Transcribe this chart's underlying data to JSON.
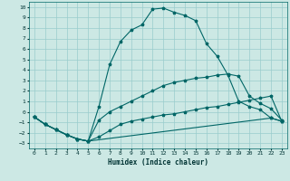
{
  "xlabel": "Humidex (Indice chaleur)",
  "bg_color": "#cce8e4",
  "grid_color": "#99cccc",
  "line_color": "#006666",
  "xlim": [
    -0.5,
    23.5
  ],
  "ylim": [
    -3.5,
    10.5
  ],
  "xticks": [
    0,
    1,
    2,
    3,
    4,
    5,
    6,
    7,
    8,
    9,
    10,
    11,
    12,
    13,
    14,
    15,
    16,
    17,
    18,
    19,
    20,
    21,
    22,
    23
  ],
  "yticks": [
    -3,
    -2,
    -1,
    0,
    1,
    2,
    3,
    4,
    5,
    6,
    7,
    8,
    9,
    10
  ],
  "curve_main_x": [
    0,
    1,
    2,
    3,
    4,
    5,
    6,
    7,
    8,
    9,
    10,
    11,
    12,
    13,
    14,
    15,
    16,
    17,
    18,
    19,
    20,
    21,
    22,
    23
  ],
  "curve_main_y": [
    -0.5,
    -1.2,
    -1.7,
    -2.2,
    -2.6,
    -2.8,
    0.5,
    4.5,
    6.7,
    7.8,
    8.3,
    9.8,
    9.9,
    9.5,
    9.2,
    8.7,
    6.5,
    5.3,
    3.5,
    1.0,
    0.5,
    0.2,
    -0.6,
    -0.9
  ],
  "curve_mid_x": [
    0,
    1,
    2,
    3,
    4,
    5,
    6,
    7,
    8,
    9,
    10,
    11,
    12,
    13,
    14,
    15,
    16,
    17,
    18,
    19,
    20,
    21,
    22,
    23
  ],
  "curve_mid_y": [
    -0.5,
    -1.2,
    -1.7,
    -2.2,
    -2.6,
    -2.8,
    -0.8,
    0.0,
    0.5,
    1.0,
    1.5,
    2.0,
    2.5,
    2.8,
    3.0,
    3.2,
    3.3,
    3.5,
    3.6,
    3.4,
    1.5,
    0.8,
    0.3,
    -0.8
  ],
  "curve_low_x": [
    0,
    1,
    2,
    3,
    4,
    5,
    6,
    7,
    8,
    9,
    10,
    11,
    12,
    13,
    14,
    15,
    16,
    17,
    18,
    19,
    20,
    21,
    22,
    23
  ],
  "curve_low_y": [
    -0.5,
    -1.2,
    -1.7,
    -2.2,
    -2.6,
    -2.8,
    -2.4,
    -1.8,
    -1.2,
    -0.9,
    -0.7,
    -0.5,
    -0.3,
    -0.2,
    0.0,
    0.2,
    0.4,
    0.5,
    0.7,
    0.9,
    1.1,
    1.3,
    1.5,
    -0.9
  ],
  "curve_bot_x": [
    0,
    1,
    2,
    3,
    4,
    5,
    22,
    23
  ],
  "curve_bot_y": [
    -0.5,
    -1.2,
    -1.7,
    -2.2,
    -2.6,
    -2.8,
    -0.6,
    -0.9
  ]
}
